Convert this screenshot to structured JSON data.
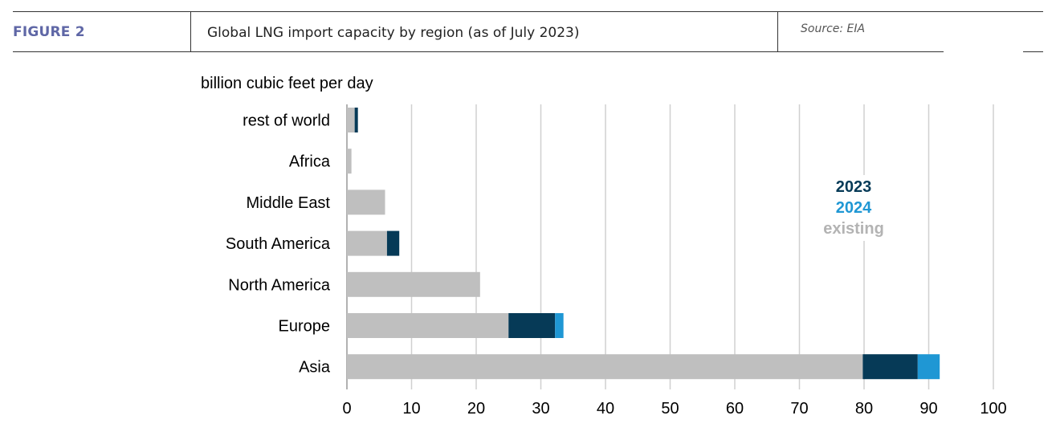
{
  "header": {
    "figure_label": "FIGURE 2",
    "title": "Global LNG import capacity by region (as of July 2023)",
    "source": "Source: EIA"
  },
  "colors": {
    "existing": "#bfbfbf",
    "y2023": "#063a57",
    "y2024": "#1f97d4",
    "figure_label": "#5f67a6",
    "grid": "#d0d0d0"
  },
  "chart_data": {
    "type": "bar",
    "orientation": "horizontal",
    "stacked": true,
    "ylabel": "billion cubic feet per day",
    "categories": [
      "rest of world",
      "Africa",
      "Middle East",
      "South America",
      "North America",
      "Europe",
      "Asia"
    ],
    "series": [
      {
        "name": "existing",
        "values": [
          1.2,
          0.7,
          5.9,
          6.2,
          20.6,
          25.0,
          79.8
        ]
      },
      {
        "name": "2023",
        "values": [
          0.5,
          0,
          0,
          1.9,
          0,
          7.2,
          8.5
        ]
      },
      {
        "name": "2024",
        "values": [
          0,
          0,
          0,
          0,
          0,
          1.3,
          3.4
        ]
      }
    ],
    "xlim": [
      0,
      100
    ],
    "xticks": [
      0,
      10,
      20,
      30,
      40,
      50,
      60,
      70,
      80,
      90,
      100
    ],
    "grid": "vertical",
    "legend_position": "right",
    "legend": [
      "2023",
      "2024",
      "existing"
    ]
  }
}
